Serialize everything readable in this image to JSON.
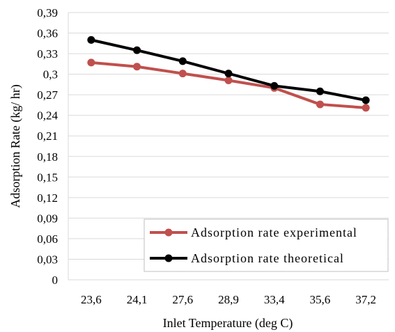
{
  "chart_data": {
    "type": "line",
    "title": "",
    "xlabel": "Inlet Temperature (deg C)",
    "ylabel": "Adsorption Rate (kg/ hr)",
    "categories": [
      "23,6",
      "24,1",
      "27,6",
      "28,9",
      "33,4",
      "35,6",
      "37,2"
    ],
    "yticks": [
      "0",
      "0,03",
      "0,06",
      "0,09",
      "0,12",
      "0,15",
      "0,18",
      "0,21",
      "0,24",
      "0,27",
      "0,3",
      "0,33",
      "0,36",
      "0,39"
    ],
    "ylim": [
      0,
      0.39
    ],
    "grid": "horizontal",
    "legend_position": "bottom-right",
    "series": [
      {
        "name": "Adsorption rate experimental",
        "color": "#c0504d",
        "values": [
          0.317,
          0.311,
          0.301,
          0.291,
          0.28,
          0.256,
          0.251
        ]
      },
      {
        "name": "Adsorption rate theoretical",
        "color": "#000000",
        "values": [
          0.35,
          0.335,
          0.319,
          0.301,
          0.283,
          0.275,
          0.262
        ]
      }
    ]
  }
}
